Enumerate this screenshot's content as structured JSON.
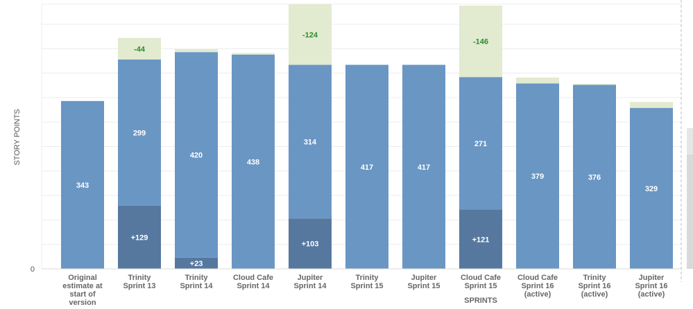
{
  "chart_data": {
    "type": "bar",
    "stacked": true,
    "title": "",
    "xlabel": "SPRINTS",
    "ylabel": "STORY POINTS",
    "ylim": [
      0,
      541
    ],
    "y_tick_labels": [
      "0"
    ],
    "grid": true,
    "grid_step": 50,
    "categories": [
      [
        "Original",
        "estimate at",
        "start of",
        "version"
      ],
      [
        "Trinity",
        "Sprint 13"
      ],
      [
        "Trinity",
        "Sprint 14"
      ],
      [
        "Cloud Cafe",
        "Sprint 14"
      ],
      [
        "Jupiter",
        "Sprint 14"
      ],
      [
        "Trinity",
        "Sprint 15"
      ],
      [
        "Jupiter",
        "Sprint 15"
      ],
      [
        "Cloud Cafe",
        "Sprint 15"
      ],
      [
        "Cloud Cafe",
        "Sprint 16",
        "(active)"
      ],
      [
        "Trinity",
        "Sprint 16",
        "(active)"
      ],
      [
        "Jupiter",
        "Sprint 16",
        "(active)"
      ]
    ],
    "series": [
      {
        "name": "added",
        "color": "#56789f",
        "label_color": "#ffffff",
        "values": [
          0,
          129,
          23,
          0,
          103,
          0,
          0,
          121,
          0,
          0,
          0
        ],
        "labels": [
          null,
          "+129",
          "+23",
          null,
          "+103",
          null,
          null,
          "+121",
          null,
          null,
          null
        ]
      },
      {
        "name": "remaining",
        "color": "#6a96c4",
        "label_color": "#ffffff",
        "values": [
          343,
          299,
          420,
          438,
          314,
          417,
          417,
          271,
          379,
          376,
          329
        ],
        "labels": [
          "343",
          "299",
          "420",
          "438",
          "314",
          "417",
          "417",
          "271",
          "379",
          "376",
          "329"
        ]
      },
      {
        "name": "removed",
        "color": "#e2ead0",
        "label_color": "#2e8b2e",
        "values": [
          0,
          44,
          6,
          3,
          124,
          0,
          0,
          146,
          12,
          2,
          12
        ],
        "labels": [
          null,
          "-44",
          null,
          null,
          "-124",
          null,
          null,
          "-146",
          null,
          null,
          null
        ]
      }
    ]
  }
}
